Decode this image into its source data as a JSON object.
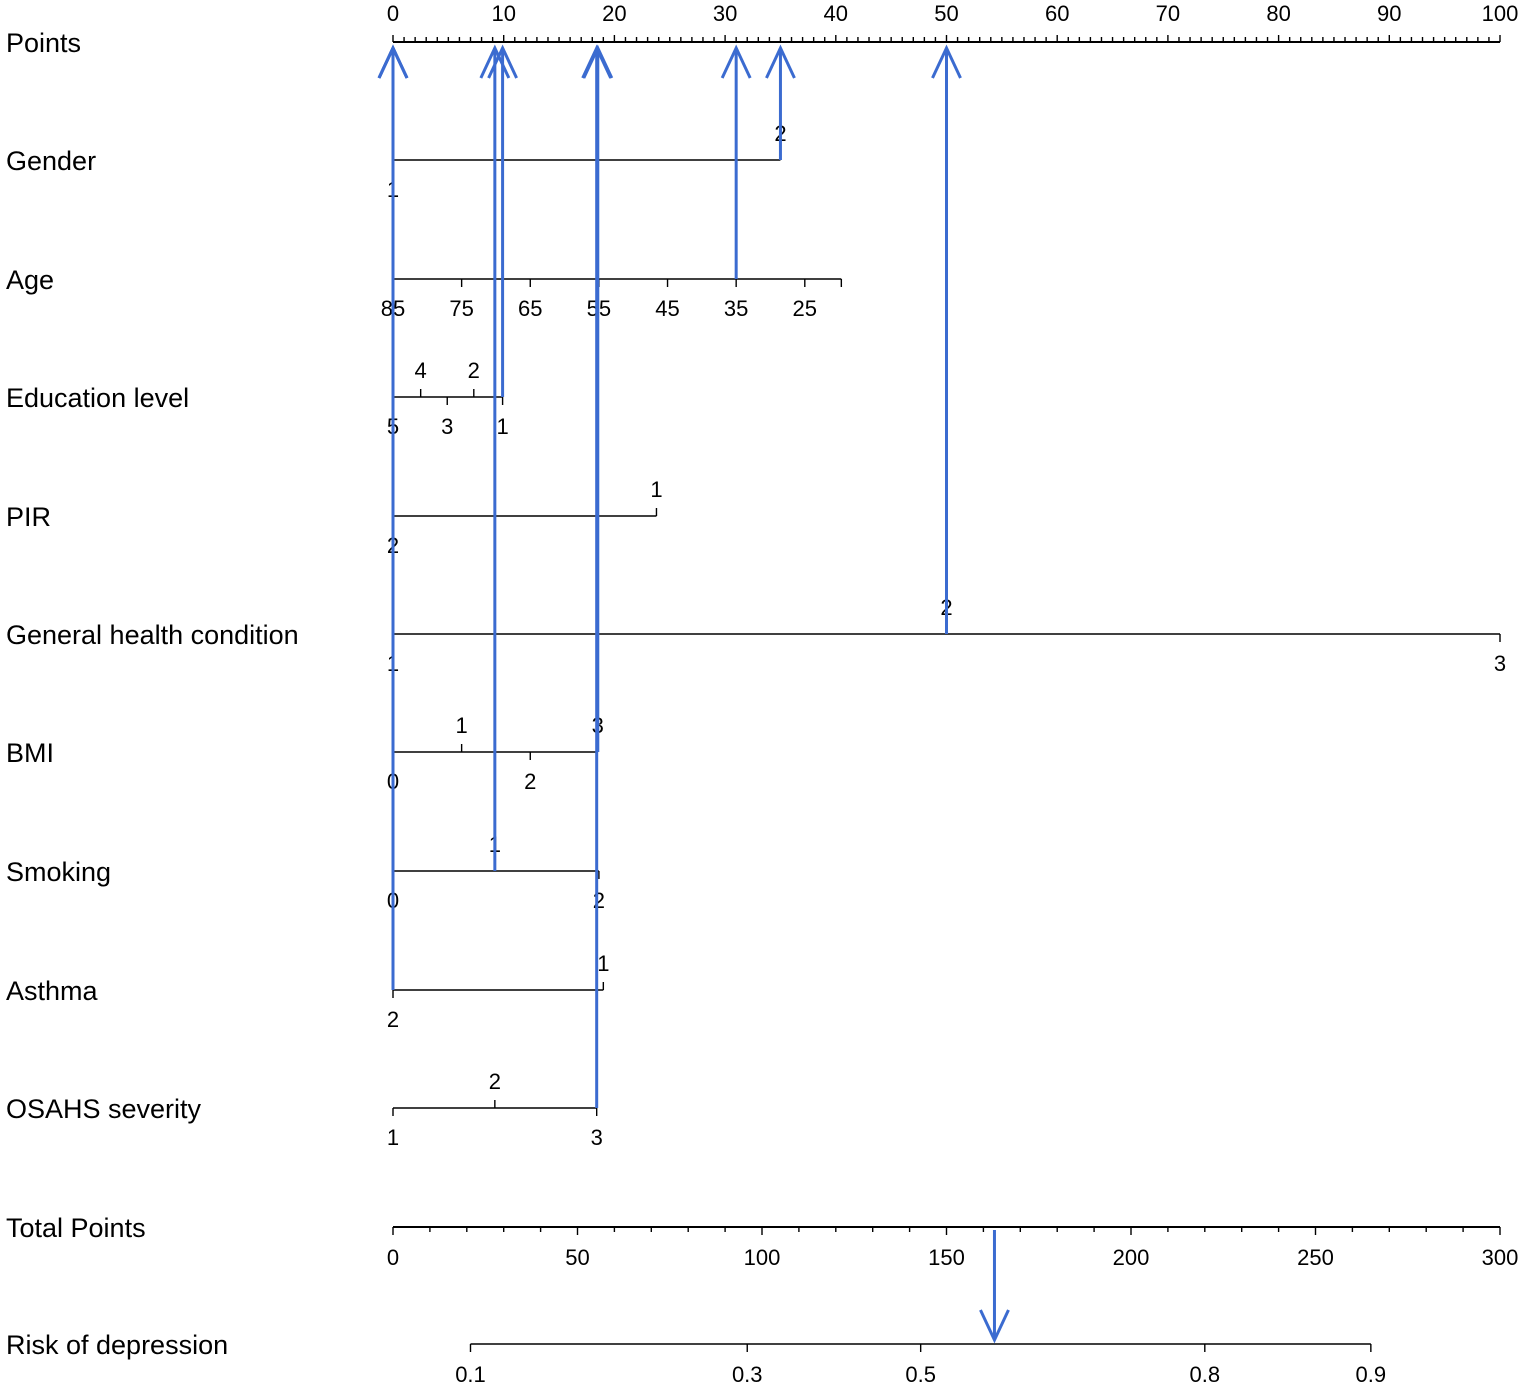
{
  "chart_data": {
    "type": "nomogram",
    "title": "",
    "points_axis": {
      "label": "Points",
      "range": [
        0,
        100
      ],
      "tick_labels": [
        "0",
        "10",
        "20",
        "30",
        "40",
        "50",
        "60",
        "70",
        "80",
        "90",
        "100"
      ]
    },
    "variables": [
      {
        "label": "Gender",
        "levels": [
          {
            "text": "1",
            "points": 0,
            "side": "below"
          },
          {
            "text": "2",
            "points": 35,
            "side": "above"
          }
        ]
      },
      {
        "label": "Age",
        "axis_end_points": 40.5,
        "levels": [
          {
            "text": "85",
            "points": 0,
            "side": "below"
          },
          {
            "text": "75",
            "points": 6.2,
            "side": "below"
          },
          {
            "text": "65",
            "points": 12.4,
            "side": "below"
          },
          {
            "text": "55",
            "points": 18.6,
            "side": "below"
          },
          {
            "text": "45",
            "points": 24.8,
            "side": "below"
          },
          {
            "text": "35",
            "points": 31,
            "side": "below"
          },
          {
            "text": "25",
            "points": 37.2,
            "side": "below"
          }
        ]
      },
      {
        "label": "Education level",
        "levels": [
          {
            "text": "5",
            "points": 0,
            "side": "below"
          },
          {
            "text": "4",
            "points": 2.5,
            "side": "above"
          },
          {
            "text": "3",
            "points": 4.9,
            "side": "below"
          },
          {
            "text": "2",
            "points": 7.3,
            "side": "above"
          },
          {
            "text": "1",
            "points": 9.9,
            "side": "below"
          }
        ]
      },
      {
        "label": "PIR",
        "levels": [
          {
            "text": "2",
            "points": 0,
            "side": "below"
          },
          {
            "text": "1",
            "points": 23.8,
            "side": "above"
          }
        ]
      },
      {
        "label": "General health condition",
        "levels": [
          {
            "text": "1",
            "points": 0,
            "side": "below"
          },
          {
            "text": "2",
            "points": 50,
            "side": "above"
          },
          {
            "text": "3",
            "points": 100,
            "side": "below"
          }
        ]
      },
      {
        "label": "BMI",
        "levels": [
          {
            "text": "0",
            "points": 0,
            "side": "below"
          },
          {
            "text": "1",
            "points": 6.2,
            "side": "above"
          },
          {
            "text": "2",
            "points": 12.4,
            "side": "below"
          },
          {
            "text": "3",
            "points": 18.5,
            "side": "above"
          }
        ]
      },
      {
        "label": "Smoking",
        "levels": [
          {
            "text": "0",
            "points": 0,
            "side": "below"
          },
          {
            "text": "1",
            "points": 9.2,
            "side": "above"
          },
          {
            "text": "2",
            "points": 18.6,
            "side": "below"
          }
        ]
      },
      {
        "label": "Asthma",
        "levels": [
          {
            "text": "2",
            "points": 0,
            "side": "below"
          },
          {
            "text": "1",
            "points": 19,
            "side": "above"
          }
        ]
      },
      {
        "label": "OSAHS severity",
        "levels": [
          {
            "text": "1",
            "points": 0,
            "side": "below"
          },
          {
            "text": "2",
            "points": 9.2,
            "side": "above"
          },
          {
            "text": "3",
            "points": 18.4,
            "side": "below"
          }
        ]
      }
    ],
    "total_points_axis": {
      "label": "Total Points",
      "range": [
        0,
        300
      ],
      "tick_labels": [
        "0",
        "50",
        "100",
        "150",
        "200",
        "250",
        "300"
      ]
    },
    "risk_axis": {
      "label": "Risk of depression",
      "total_points_range": [
        21,
        265
      ],
      "ticks": [
        {
          "text": "0.1",
          "total_points": 21
        },
        {
          "text": "0.3",
          "total_points": 96
        },
        {
          "text": "0.5",
          "total_points": 143
        },
        {
          "text": "0.8",
          "total_points": 220
        },
        {
          "text": "0.9",
          "total_points": 265
        }
      ]
    },
    "annotation_arrows": {
      "color": "#3b6bd0",
      "up_arrows": [
        {
          "from_row": "Gender",
          "value_text": "1",
          "points": 0
        },
        {
          "from_row": "Gender",
          "value_text": "2",
          "points": 35
        },
        {
          "from_row": "Age",
          "value_text": "35",
          "points": 31
        },
        {
          "from_row": "Education level",
          "value_text": "1",
          "points": 9.9
        },
        {
          "from_row": "PIR",
          "value_text": "2",
          "points": 0
        },
        {
          "from_row": "General health condition",
          "value_text": "2",
          "points": 50
        },
        {
          "from_row": "BMI",
          "value_text": "3",
          "points": 18.5
        },
        {
          "from_row": "Smoking",
          "value_text": "1",
          "points": 9.2
        },
        {
          "from_row": "Asthma",
          "value_text": "2",
          "points": 0
        },
        {
          "from_row": "OSAHS severity",
          "value_text": "3",
          "points": 18.4
        }
      ],
      "down_arrow": {
        "total_points": 163
      }
    }
  }
}
